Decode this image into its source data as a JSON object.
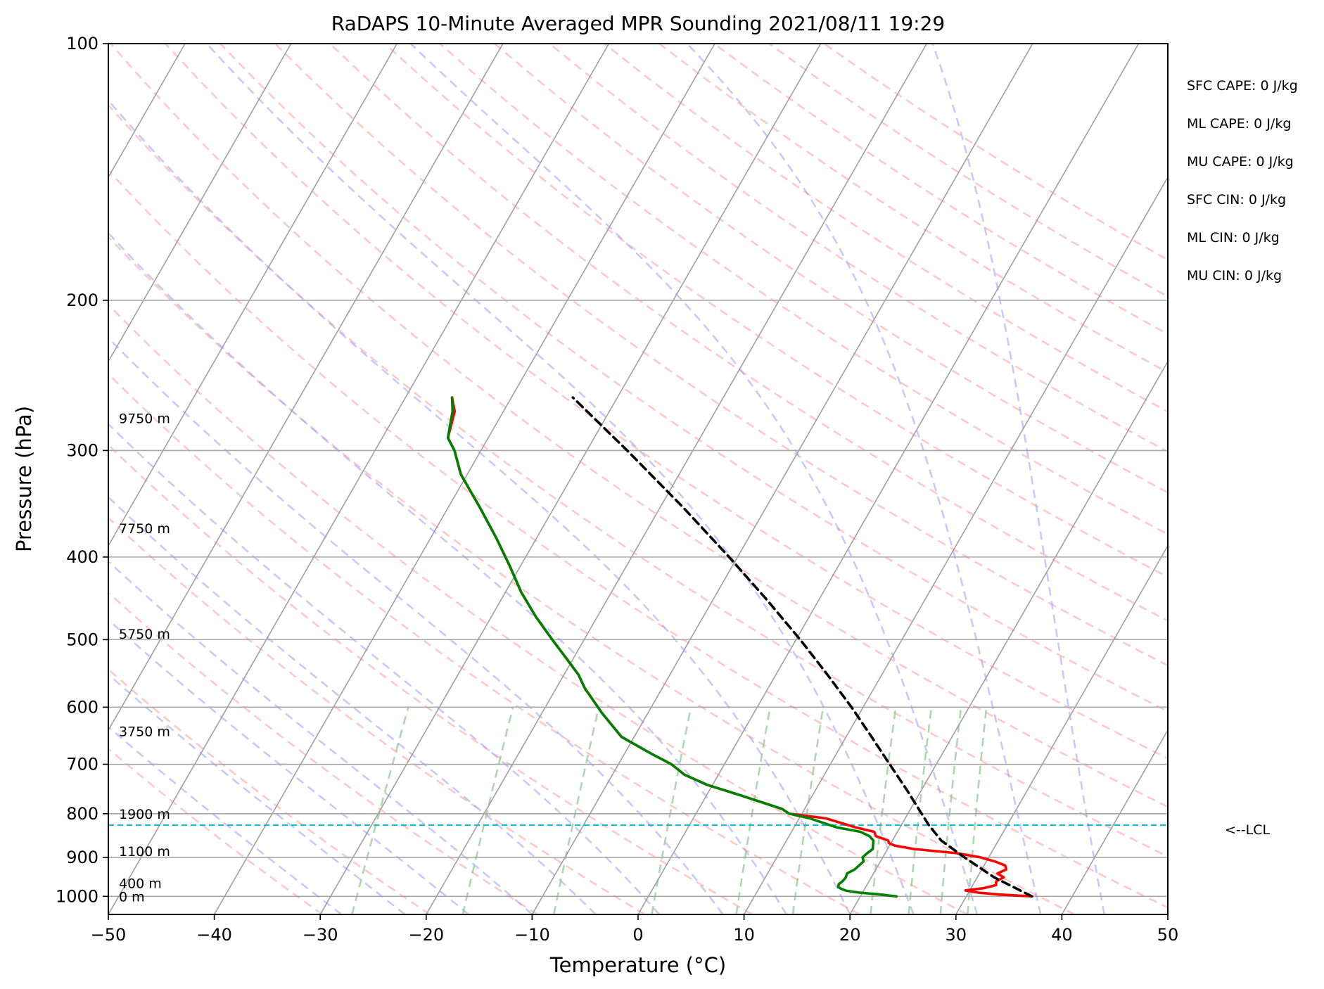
{
  "chart_data": {
    "type": "line",
    "chart_kind": "skew-T log-P sounding",
    "title": "RaDAPS 10-Minute Averaged MPR Sounding 2021/08/11 19:29",
    "xlabel": "Temperature (°C)",
    "ylabel": "Pressure (hPa)",
    "xlim": [
      -50,
      50
    ],
    "ylim": [
      1050,
      100
    ],
    "y_scale": "log",
    "grid": true,
    "x_ticks": [
      -50,
      -40,
      -30,
      -20,
      -10,
      0,
      10,
      20,
      30,
      40,
      50
    ],
    "x_tick_labels": [
      "−50",
      "−40",
      "−30",
      "−20",
      "−10",
      "0",
      "10",
      "20",
      "30",
      "40",
      "50"
    ],
    "y_ticks": [
      100,
      200,
      300,
      400,
      500,
      600,
      700,
      800,
      900,
      1000
    ],
    "y_tick_labels": [
      "100",
      "200",
      "300",
      "400",
      "500",
      "600",
      "700",
      "800",
      "900",
      "1000"
    ],
    "height_labels": [
      {
        "text": "9750 m",
        "pressure": 275
      },
      {
        "text": "7750 m",
        "pressure": 370
      },
      {
        "text": "5750 m",
        "pressure": 492
      },
      {
        "text": "3750 m",
        "pressure": 640
      },
      {
        "text": "1900 m",
        "pressure": 800
      },
      {
        "text": "1100 m",
        "pressure": 885
      },
      {
        "text": "400 m",
        "pressure": 965
      },
      {
        "text": "0 m",
        "pressure": 1000
      }
    ],
    "indices": [
      "SFC CAPE: 0 J/kg",
      "ML CAPE: 0 J/kg",
      "MU CAPE: 0 J/kg",
      "SFC CIN: 0 J/kg",
      "ML CIN: 0 J/kg",
      "MU CIN: 0 J/kg"
    ],
    "lcl": {
      "label": "<--LCL",
      "pressure": 825
    },
    "colors": {
      "temperature": "#ff0000",
      "dewpoint": "#008000",
      "parcel": "#000000",
      "lcl": "#17becf",
      "dry_adiabats": "#ff9999",
      "moist_adiabats": "#9999ff",
      "mixing_ratio": "#8fc98f",
      "isotherms": "#a0a0a0",
      "isobars": "#a8a8a8"
    },
    "series": [
      {
        "key": "temperature",
        "points": [
          [
            1000,
            36.2
          ],
          [
            995,
            33.0
          ],
          [
            990,
            30.9
          ],
          [
            984,
            29.6
          ],
          [
            978,
            31.2
          ],
          [
            970,
            32.2
          ],
          [
            960,
            32.0
          ],
          [
            950,
            32.5
          ],
          [
            940,
            31.7
          ],
          [
            930,
            32.3
          ],
          [
            920,
            32.0
          ],
          [
            910,
            30.8
          ],
          [
            900,
            29.2
          ],
          [
            890,
            26.8
          ],
          [
            880,
            22.5
          ],
          [
            872,
            20.5
          ],
          [
            866,
            19.8
          ],
          [
            860,
            19.6
          ],
          [
            850,
            18.2
          ],
          [
            840,
            17.8
          ],
          [
            830,
            15.8
          ],
          [
            810,
            12.5
          ],
          [
            800,
            8.8
          ],
          [
            790,
            7.9
          ],
          [
            780,
            6.3
          ],
          [
            760,
            3.0
          ],
          [
            740,
            -0.5
          ],
          [
            720,
            -3.2
          ],
          [
            700,
            -5.0
          ],
          [
            680,
            -7.5
          ],
          [
            650,
            -11.2
          ],
          [
            610,
            -14.3
          ],
          [
            570,
            -17.3
          ],
          [
            550,
            -18.6
          ],
          [
            530,
            -20.3
          ],
          [
            500,
            -23.0
          ],
          [
            470,
            -25.8
          ],
          [
            440,
            -28.5
          ],
          [
            410,
            -31.0
          ],
          [
            380,
            -33.8
          ],
          [
            350,
            -37.0
          ],
          [
            320,
            -40.6
          ],
          [
            300,
            -42.5
          ],
          [
            290,
            -43.8
          ],
          [
            280,
            -44.2
          ],
          [
            270,
            -44.6
          ],
          [
            260,
            -45.6
          ]
        ]
      },
      {
        "key": "dewpoint",
        "points": [
          [
            1000,
            23.4
          ],
          [
            995,
            21.8
          ],
          [
            990,
            19.7
          ],
          [
            985,
            18.4
          ],
          [
            980,
            17.8
          ],
          [
            975,
            17.4
          ],
          [
            968,
            17.3
          ],
          [
            960,
            17.5
          ],
          [
            950,
            17.6
          ],
          [
            940,
            17.5
          ],
          [
            930,
            18.0
          ],
          [
            920,
            18.2
          ],
          [
            910,
            18.4
          ],
          [
            900,
            18.1
          ],
          [
            890,
            18.3
          ],
          [
            880,
            18.6
          ],
          [
            870,
            18.4
          ],
          [
            860,
            18.2
          ],
          [
            850,
            17.6
          ],
          [
            840,
            16.5
          ],
          [
            830,
            14.0
          ],
          [
            810,
            11.0
          ],
          [
            800,
            8.8
          ],
          [
            790,
            7.9
          ],
          [
            780,
            6.3
          ],
          [
            760,
            3.0
          ],
          [
            740,
            -0.5
          ],
          [
            720,
            -3.2
          ],
          [
            700,
            -5.0
          ],
          [
            680,
            -7.5
          ],
          [
            650,
            -11.2
          ],
          [
            610,
            -14.3
          ],
          [
            570,
            -17.3
          ],
          [
            550,
            -18.6
          ],
          [
            530,
            -20.3
          ],
          [
            500,
            -23.0
          ],
          [
            470,
            -25.8
          ],
          [
            440,
            -28.5
          ],
          [
            410,
            -31.0
          ],
          [
            380,
            -33.8
          ],
          [
            350,
            -37.0
          ],
          [
            320,
            -40.6
          ],
          [
            300,
            -42.5
          ],
          [
            290,
            -43.8
          ],
          [
            280,
            -44.3
          ],
          [
            270,
            -44.8
          ],
          [
            260,
            -45.6
          ]
        ]
      },
      {
        "key": "parcel",
        "points": [
          [
            1000,
            36.2
          ],
          [
            950,
            31.6
          ],
          [
            900,
            27.7
          ],
          [
            860,
            24.6
          ],
          [
            825,
            22.6
          ],
          [
            800,
            21.3
          ],
          [
            750,
            18.6
          ],
          [
            700,
            15.6
          ],
          [
            650,
            12.4
          ],
          [
            600,
            8.9
          ],
          [
            550,
            4.9
          ],
          [
            500,
            0.4
          ],
          [
            450,
            -4.8
          ],
          [
            400,
            -10.8
          ],
          [
            350,
            -17.8
          ],
          [
            300,
            -26.2
          ],
          [
            260,
            -34.2
          ]
        ]
      }
    ]
  }
}
